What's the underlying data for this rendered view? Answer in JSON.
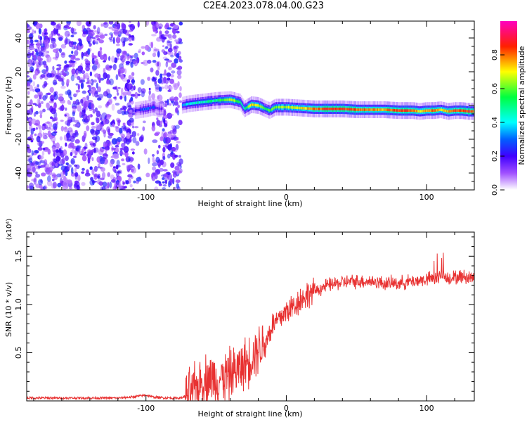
{
  "title": "C2E4.2023.078.04.00.G23",
  "chart_data": [
    {
      "type": "heatmap",
      "xlabel": "Height of straight line (km)",
      "ylabel": "Frequency (Hz)",
      "xlim": [
        -185,
        134
      ],
      "ylim": [
        -50,
        50
      ],
      "x_ticks": [
        -100,
        0,
        100
      ],
      "x_tick_labels": [
        "-100",
        "0",
        "100"
      ],
      "y_ticks": [
        -40,
        -20,
        0,
        20,
        40
      ],
      "y_tick_labels": [
        "-40",
        "-20",
        "0",
        "20",
        "40"
      ],
      "grid": false,
      "colorbar": {
        "label": "Normalized spectral amplitude",
        "range": [
          0,
          1
        ],
        "ticks": [
          0.0,
          0.2,
          0.4,
          0.6,
          0.8
        ],
        "tick_labels": [
          "0.0",
          "0.2",
          "0.4",
          "0.6",
          "0.8"
        ],
        "colormap": [
          "#ffffff",
          "#7f00ff",
          "#0000ff",
          "#00ffff",
          "#00ff00",
          "#ffff00",
          "#ff0000",
          "#ff00ff"
        ]
      },
      "noise_region": {
        "x_range": [
          -185,
          -75
        ],
        "y_range": [
          -50,
          50
        ],
        "amplitude": [
          0.05,
          0.25
        ]
      },
      "signal_track": {
        "x": [
          -108,
          -100,
          -95,
          -90,
          -75,
          -70,
          -60,
          -50,
          -40,
          -33,
          -30,
          -25,
          -20,
          -15,
          -12,
          -8,
          0,
          10,
          20,
          30,
          40,
          50,
          60,
          70,
          80,
          90,
          95,
          100,
          105,
          110,
          115,
          120,
          125,
          130,
          134
        ],
        "y": [
          -3,
          -2,
          -1,
          -2,
          0,
          1,
          2,
          3,
          3.5,
          2,
          -2,
          0.5,
          0,
          -2,
          -3,
          -1,
          -1,
          -1.5,
          -2,
          -2,
          -2,
          -2.5,
          -2.5,
          -2.5,
          -3,
          -3,
          -3.5,
          -3,
          -3,
          -2.5,
          -3.5,
          -3,
          -3,
          -3.5,
          -3.5
        ],
        "amplitude": [
          0.2,
          0.3,
          0.25,
          0.15,
          0.35,
          0.4,
          0.45,
          0.5,
          0.7,
          0.5,
          0.45,
          0.75,
          0.65,
          0.55,
          0.6,
          0.6,
          0.65,
          0.7,
          0.8,
          0.85,
          0.85,
          0.8,
          0.8,
          0.75,
          0.85,
          0.8,
          0.7,
          0.75,
          0.8,
          0.7,
          0.75,
          0.85,
          0.8,
          0.85,
          0.8
        ]
      }
    },
    {
      "type": "line",
      "xlabel": "Height of straight line (km)",
      "ylabel": "SNR (10 * v/v)",
      "scale_label": "(x10⁴)",
      "xlim": [
        -185,
        134
      ],
      "ylim": [
        0,
        1.75
      ],
      "x_ticks": [
        -100,
        0,
        100
      ],
      "x_tick_labels": [
        "-100",
        "0",
        "100"
      ],
      "y_ticks": [
        0.5,
        1.0,
        1.5
      ],
      "y_tick_labels": [
        "0.5",
        "1.0",
        "1.5"
      ],
      "grid": false,
      "series": [
        {
          "color": "#e83232",
          "x": [
            -185,
            -150,
            -120,
            -110,
            -100,
            -95,
            -85,
            -75,
            -70,
            -65,
            -60,
            -55,
            -50,
            -45,
            -40,
            -35,
            -30,
            -25,
            -20,
            -15,
            -10,
            -5,
            0,
            5,
            10,
            15,
            20,
            30,
            40,
            50,
            60,
            70,
            80,
            90,
            100,
            105,
            110,
            115,
            120,
            125,
            130,
            134
          ],
          "y": [
            0.03,
            0.03,
            0.03,
            0.04,
            0.06,
            0.04,
            0.03,
            0.03,
            0.06,
            0.12,
            0.2,
            0.25,
            0.22,
            0.24,
            0.28,
            0.32,
            0.38,
            0.45,
            0.55,
            0.6,
            0.78,
            0.85,
            0.93,
            0.98,
            1.05,
            1.1,
            1.14,
            1.2,
            1.23,
            1.24,
            1.24,
            1.22,
            1.22,
            1.24,
            1.26,
            1.27,
            1.3,
            1.28,
            1.28,
            1.29,
            1.28,
            1.28
          ]
        }
      ]
    }
  ]
}
